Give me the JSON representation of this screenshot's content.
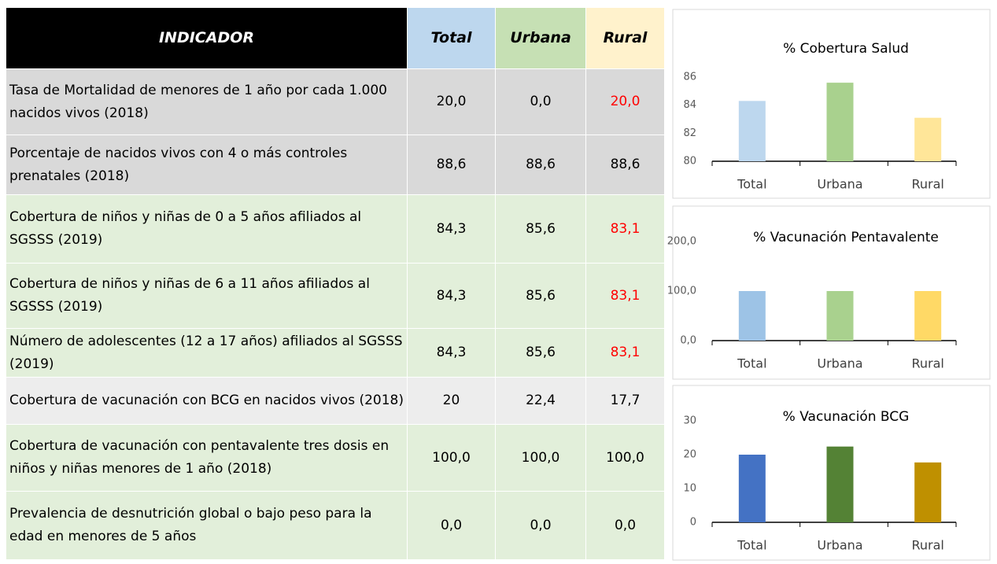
{
  "table": {
    "header": [
      "INDICADOR",
      "Total",
      "Urbana",
      "Rural"
    ],
    "header_colors": [
      "#000000",
      "#bdd7ee",
      "#c6e0b4",
      "#fff2cc"
    ],
    "header_text_colors": [
      "#ffffff",
      "#000000",
      "#000000",
      "#000000"
    ],
    "rows": [
      {
        "label": "Tasa de Mortalidad de menores de 1 año  por cada 1.000 nacidos vivos (2018)",
        "values": [
          "20,0",
          "0,0",
          "20,0"
        ],
        "colors": [
          "#000000",
          "#000000",
          "#ff0000"
        ],
        "background": "#d9d9d9"
      },
      {
        "label": "Porcentaje de nacidos vivos con 4 o más controles prenatales (2018)",
        "values": [
          "88,6",
          "88,6",
          "88,6"
        ],
        "colors": [
          "#000000",
          "#000000",
          "#000000"
        ],
        "background": "#d9d9d9"
      },
      {
        "label": "Cobertura de niños y niñas de 0 a 5 años afiliados al SGSSS  (2019)",
        "values": [
          "84,3",
          "85,6",
          "83,1"
        ],
        "colors": [
          "#000000",
          "#000000",
          "#ff0000"
        ],
        "background": "#e2efda"
      },
      {
        "label": "Cobertura  de niños y niñas de 6 a 11 años afiliados al SGSSS (2019)",
        "values": [
          "84,3",
          "85,6",
          "83,1"
        ],
        "colors": [
          "#000000",
          "#000000",
          "#ff0000"
        ],
        "background": "#e2efda"
      },
      {
        "label": "Número de adolescentes  (12 a 17 años) afiliados al SGSSS (2019)",
        "values": [
          "84,3",
          "85,6",
          "83,1"
        ],
        "colors": [
          "#000000",
          "#000000",
          "#ff0000"
        ],
        "background": "#e2efda"
      },
      {
        "label": "Cobertura de vacunación con BCG en nacidos vivos (2018)",
        "values": [
          "20",
          "22,4",
          "17,7"
        ],
        "colors": [
          "#000000",
          "#000000",
          "#000000"
        ],
        "background": "#ededed"
      },
      {
        "label": "Cobertura de vacunación con pentavalente tres dosis en niños y niñas menores de 1 año (2018)",
        "values": [
          "100,0",
          "100,0",
          "100,0"
        ],
        "colors": [
          "#000000",
          "#000000",
          "#000000"
        ],
        "background": "#e2efda"
      },
      {
        "label": "Prevalencia de desnutrición global o bajo peso para la edad en  menores de 5 años",
        "values": [
          "0,0",
          "0,0",
          "0,0"
        ],
        "colors": [
          "#000000",
          "#000000",
          "#000000"
        ],
        "background": "#e2efda"
      }
    ]
  },
  "chart_data": [
    {
      "type": "bar",
      "title": "% Cobertura Salud",
      "categories": [
        "Total",
        "Urbana",
        "Rural"
      ],
      "values": [
        84.3,
        85.6,
        83.1
      ],
      "colors": [
        "#bdd7ee",
        "#a9d18e",
        "#ffe699"
      ],
      "ylim": [
        80,
        86
      ],
      "yticks": [
        80,
        82,
        84,
        86
      ],
      "grid": false
    },
    {
      "type": "bar",
      "title": "% Vacunación Pentavalente",
      "categories": [
        "Total",
        "Urbana",
        "Rural"
      ],
      "values": [
        100,
        100,
        100
      ],
      "colors": [
        "#9dc3e6",
        "#a9d18e",
        "#ffd966"
      ],
      "ylim": [
        0,
        200
      ],
      "yticks": [
        {
          "value": 0,
          "label": "0,0"
        },
        {
          "value": 100,
          "label": "100,0"
        },
        {
          "value": 200,
          "label": "200,0"
        }
      ],
      "grid": false
    },
    {
      "type": "bar",
      "title": "% Vacunación BCG",
      "categories": [
        "Total",
        "Urbana",
        "Rural"
      ],
      "values": [
        20,
        22.4,
        17.7
      ],
      "colors": [
        "#4472c4",
        "#548235",
        "#bf9000"
      ],
      "ylim": [
        0,
        30
      ],
      "yticks": [
        0,
        10,
        20,
        30
      ],
      "grid": false
    }
  ]
}
